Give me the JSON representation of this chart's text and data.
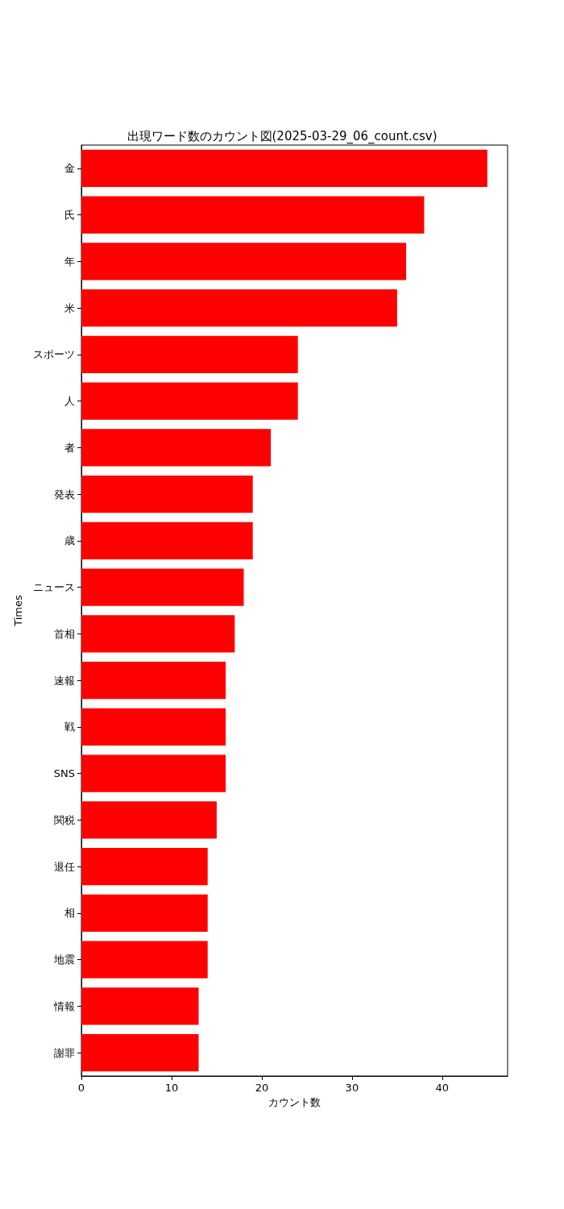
{
  "chart_data": {
    "type": "bar",
    "orientation": "horizontal",
    "title": "出現ワード数のカウント図(2025-03-29_06_count.csv)",
    "xlabel": "カウント数",
    "ylabel": "Times",
    "categories": [
      "金",
      "氏",
      "年",
      "米",
      "スポーツ",
      "人",
      "者",
      "発表",
      "歳",
      "ニュース",
      "首相",
      "速報",
      "戦",
      "SNS",
      "関税",
      "退任",
      "相",
      "地震",
      "情報",
      "謝罪"
    ],
    "values": [
      45,
      38,
      36,
      35,
      24,
      24,
      21,
      19,
      19,
      18,
      17,
      16,
      16,
      16,
      15,
      14,
      14,
      14,
      13,
      13
    ],
    "color": "#ff0000",
    "xlim": [
      0,
      47.25
    ],
    "xticks": [
      0,
      10,
      20,
      30,
      40
    ],
    "grid": false
  }
}
